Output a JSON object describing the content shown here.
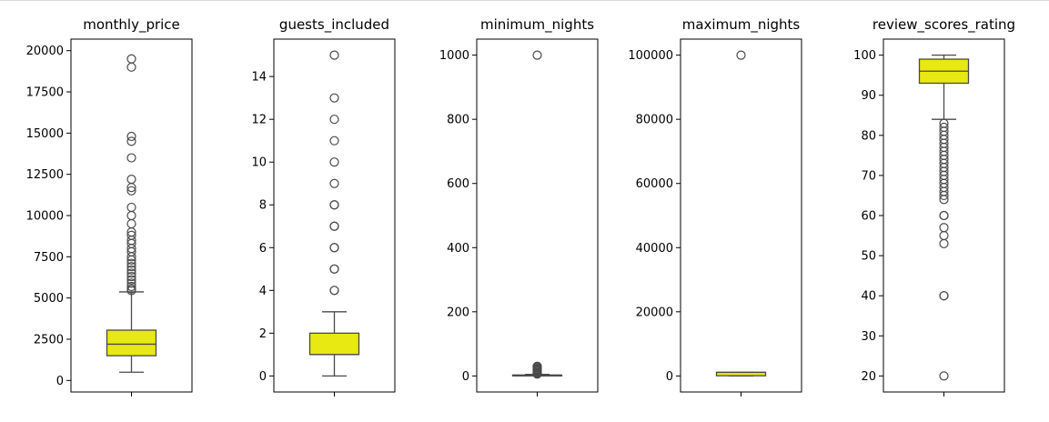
{
  "colors": {
    "box_fill": "#e8e812",
    "line": "#4a4a4a",
    "flier_edge": "#4a4a4a",
    "axes": "#000000",
    "background": "#ffffff"
  },
  "chart_data": [
    {
      "type": "box",
      "title": "monthly_price",
      "ylim": [
        -700,
        20700
      ],
      "yticks": [
        0,
        2500,
        5000,
        7500,
        10000,
        12500,
        15000,
        17500,
        20000
      ],
      "ytick_labels": [
        "0",
        "2500",
        "5000",
        "7500",
        "10000",
        "12500",
        "15000",
        "17500",
        "20000"
      ],
      "box": {
        "whisker_low": 500,
        "q1": 1500,
        "median": 2200,
        "q3": 3050,
        "whisker_high": 5370
      },
      "outliers": [
        19500,
        19000,
        14800,
        14500,
        13500,
        12200,
        11700,
        11500,
        10500,
        10000,
        9500,
        9000,
        8800,
        8500,
        8300,
        8000,
        7800,
        7500,
        7300,
        7100,
        6900,
        6700,
        6500,
        6300,
        6100,
        5900,
        5700,
        5550,
        5450
      ]
    },
    {
      "type": "box",
      "title": "guests_included",
      "ylim": [
        -0.75,
        15.75
      ],
      "yticks": [
        0,
        2,
        4,
        6,
        8,
        10,
        12,
        14
      ],
      "ytick_labels": [
        "0",
        "2",
        "4",
        "6",
        "8",
        "10",
        "12",
        "14"
      ],
      "box": {
        "whisker_low": 0,
        "q1": 1,
        "median": 1,
        "q3": 2,
        "whisker_high": 3
      },
      "outliers": [
        4,
        4,
        5,
        5,
        6,
        6,
        7,
        7,
        8,
        8,
        9,
        10,
        11,
        12,
        13,
        15
      ]
    },
    {
      "type": "box",
      "title": "minimum_nights",
      "ylim": [
        -50,
        1050
      ],
      "yticks": [
        0,
        200,
        400,
        600,
        800,
        1000
      ],
      "ytick_labels": [
        "0",
        "200",
        "400",
        "600",
        "800",
        "1000"
      ],
      "box": {
        "whisker_low": 1,
        "q1": 1,
        "median": 2,
        "q3": 3,
        "whisker_high": 5
      },
      "outliers": [
        1000,
        30,
        28,
        25,
        22,
        20,
        18,
        15,
        12,
        10,
        8,
        7,
        6
      ]
    },
    {
      "type": "box",
      "title": "maximum_nights",
      "ylim": [
        -5000,
        105000
      ],
      "yticks": [
        0,
        20000,
        40000,
        60000,
        80000,
        100000
      ],
      "ytick_labels": [
        "0",
        "20000",
        "40000",
        "60000",
        "80000",
        "100000"
      ],
      "box": {
        "whisker_low": 1,
        "q1": 60,
        "median": 1125,
        "q3": 1125,
        "whisker_high": 1125
      },
      "outliers": [
        100000
      ]
    },
    {
      "type": "box",
      "title": "review_scores_rating",
      "ylim": [
        16,
        104
      ],
      "yticks": [
        20,
        30,
        40,
        50,
        60,
        70,
        80,
        90,
        100
      ],
      "ytick_labels": [
        "20",
        "30",
        "40",
        "50",
        "60",
        "70",
        "80",
        "90",
        "100"
      ],
      "box": {
        "whisker_low": 84,
        "q1": 93,
        "median": 96,
        "q3": 99,
        "whisker_high": 100
      },
      "outliers": [
        83,
        82,
        81,
        80,
        79,
        78,
        77,
        76,
        75,
        74,
        73,
        72,
        71,
        70,
        69,
        68,
        67,
        66,
        65,
        64,
        60,
        60,
        57,
        55,
        53,
        40,
        40,
        20
      ]
    }
  ]
}
